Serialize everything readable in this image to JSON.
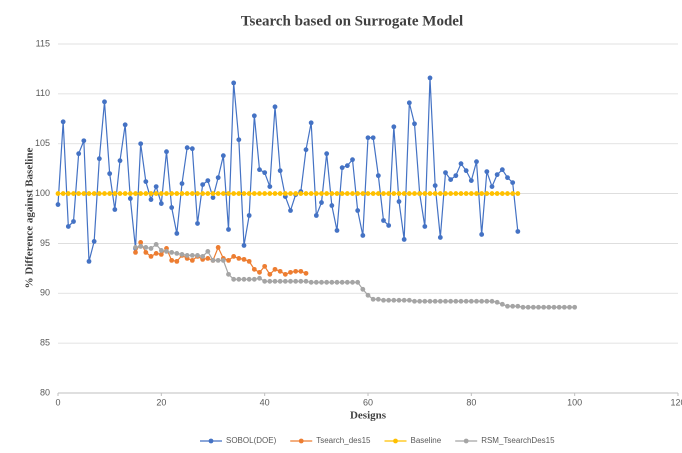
{
  "chart_data": {
    "type": "line",
    "title": "Tsearch based on Surrogate Model",
    "xlabel": "Designs",
    "ylabel": "% Difference against Baseline",
    "xlim": [
      0,
      120
    ],
    "xticks": [
      0,
      20,
      40,
      60,
      80,
      100,
      120
    ],
    "ylim": [
      80,
      115
    ],
    "yticks": [
      80,
      85,
      90,
      95,
      100,
      105,
      110,
      115
    ],
    "grid": true,
    "legend": "bottom",
    "series": [
      {
        "name": "SOBOL(DOE)",
        "color": "#4472c4",
        "x": [
          0,
          1,
          2,
          3,
          4,
          5,
          6,
          7,
          8,
          9,
          10,
          11,
          12,
          13,
          14,
          15,
          16,
          17,
          18,
          19,
          20,
          21,
          22,
          23,
          24,
          25,
          26,
          27,
          28,
          29,
          30,
          31,
          32,
          33,
          34,
          35,
          36,
          37,
          38,
          39,
          40,
          41,
          42,
          43,
          44,
          45,
          46,
          47,
          48,
          49,
          50,
          51,
          52,
          53,
          54,
          55,
          56,
          57,
          58,
          59,
          60,
          61,
          62,
          63,
          64,
          65,
          66,
          67,
          68,
          69,
          70,
          71,
          72,
          73,
          74,
          75,
          76,
          77,
          78,
          79,
          80,
          81,
          82,
          83,
          84,
          85,
          86,
          87,
          88,
          89
        ],
        "values": [
          98.9,
          107.2,
          96.7,
          97.2,
          104,
          105.3,
          93.2,
          95.2,
          103.5,
          109.2,
          102,
          98.4,
          103.3,
          106.9,
          99.5,
          94.5,
          105,
          101.2,
          99.4,
          100.7,
          99,
          104.2,
          98.6,
          96,
          101,
          104.6,
          104.5,
          97,
          100.9,
          101.3,
          99.6,
          101.6,
          103.8,
          96.4,
          111.1,
          105.4,
          94.8,
          97.8,
          107.8,
          102.4,
          102.1,
          100.7,
          108.7,
          102.3,
          99.7,
          98.3,
          99.9,
          100.2,
          104.4,
          107.1,
          97.8,
          99.1,
          104,
          98.8,
          96.3,
          102.6,
          102.8,
          103.4,
          98.3,
          95.8,
          105.6,
          105.6,
          101.8,
          97.3,
          96.8,
          106.7,
          99.2,
          95.4,
          109.1,
          107,
          100,
          96.7,
          111.6,
          100.8,
          95.6,
          102.1,
          101.4,
          101.8,
          103,
          102.3,
          101.3,
          103.2,
          95.9,
          102.2,
          100.7,
          101.9,
          102.4,
          101.6,
          101.1,
          96.2
        ]
      },
      {
        "name": "Tsearch_des15",
        "color": "#ed7d31",
        "x": [
          15,
          16,
          17,
          18,
          19,
          20,
          21,
          22,
          23,
          24,
          25,
          26,
          27,
          28,
          29,
          30,
          31,
          32,
          33,
          34,
          35,
          36,
          37,
          38,
          39,
          40,
          41,
          42,
          43,
          44,
          45,
          46,
          47,
          48
        ],
        "values": [
          94.1,
          95.1,
          94.1,
          93.7,
          94,
          93.9,
          94.5,
          93.3,
          93.2,
          93.8,
          93.5,
          93.3,
          93.7,
          93.4,
          93.5,
          93.3,
          94.6,
          93.5,
          93.3,
          93.7,
          93.5,
          93.4,
          93.2,
          92.4,
          92.1,
          92.7,
          91.9,
          92.4,
          92.2,
          91.9,
          92.1,
          92.2,
          92.2,
          92
        ]
      },
      {
        "name": "Baseline",
        "color": "#ffc000",
        "x": [
          0,
          1,
          2,
          3,
          4,
          5,
          6,
          7,
          8,
          9,
          10,
          11,
          12,
          13,
          14,
          15,
          16,
          17,
          18,
          19,
          20,
          21,
          22,
          23,
          24,
          25,
          26,
          27,
          28,
          29,
          30,
          31,
          32,
          33,
          34,
          35,
          36,
          37,
          38,
          39,
          40,
          41,
          42,
          43,
          44,
          45,
          46,
          47,
          48,
          49,
          50,
          51,
          52,
          53,
          54,
          55,
          56,
          57,
          58,
          59,
          60,
          61,
          62,
          63,
          64,
          65,
          66,
          67,
          68,
          69,
          70,
          71,
          72,
          73,
          74,
          75,
          76,
          77,
          78,
          79,
          80,
          81,
          82,
          83,
          84,
          85,
          86,
          87,
          88,
          89
        ],
        "values": [
          100,
          100,
          100,
          100,
          100,
          100,
          100,
          100,
          100,
          100,
          100,
          100,
          100,
          100,
          100,
          100,
          100,
          100,
          100,
          100,
          100,
          100,
          100,
          100,
          100,
          100,
          100,
          100,
          100,
          100,
          100,
          100,
          100,
          100,
          100,
          100,
          100,
          100,
          100,
          100,
          100,
          100,
          100,
          100,
          100,
          100,
          100,
          100,
          100,
          100,
          100,
          100,
          100,
          100,
          100,
          100,
          100,
          100,
          100,
          100,
          100,
          100,
          100,
          100,
          100,
          100,
          100,
          100,
          100,
          100,
          100,
          100,
          100,
          100,
          100,
          100,
          100,
          100,
          100,
          100,
          100,
          100,
          100,
          100,
          100,
          100,
          100,
          100,
          100,
          100
        ]
      },
      {
        "name": "RSM_TsearchDes15",
        "color": "#a5a5a5",
        "x": [
          15,
          16,
          17,
          18,
          19,
          20,
          21,
          22,
          23,
          24,
          25,
          26,
          27,
          28,
          29,
          30,
          31,
          32,
          33,
          34,
          35,
          36,
          37,
          38,
          39,
          40,
          41,
          42,
          43,
          44,
          45,
          46,
          47,
          48,
          49,
          50,
          51,
          52,
          53,
          54,
          55,
          56,
          57,
          58,
          59,
          60,
          61,
          62,
          63,
          64,
          65,
          66,
          67,
          68,
          69,
          70,
          71,
          72,
          73,
          74,
          75,
          76,
          77,
          78,
          79,
          80,
          81,
          82,
          83,
          84,
          85,
          86,
          87,
          88,
          89,
          90,
          91,
          92,
          93,
          94,
          95,
          96,
          97,
          98,
          99,
          100
        ],
        "values": [
          94.6,
          94.7,
          94.6,
          94.5,
          94.9,
          94.3,
          94.2,
          94.1,
          94.0,
          93.9,
          93.8,
          93.8,
          93.8,
          93.7,
          94.2,
          93.3,
          93.3,
          93.3,
          91.9,
          91.4,
          91.4,
          91.4,
          91.4,
          91.4,
          91.5,
          91.2,
          91.2,
          91.2,
          91.2,
          91.2,
          91.2,
          91.2,
          91.2,
          91.2,
          91.1,
          91.1,
          91.1,
          91.1,
          91.1,
          91.1,
          91.1,
          91.1,
          91.1,
          91.1,
          90.4,
          89.8,
          89.4,
          89.4,
          89.3,
          89.3,
          89.3,
          89.3,
          89.3,
          89.3,
          89.2,
          89.2,
          89.2,
          89.2,
          89.2,
          89.2,
          89.2,
          89.2,
          89.2,
          89.2,
          89.2,
          89.2,
          89.2,
          89.2,
          89.2,
          89.2,
          89.1,
          88.9,
          88.7,
          88.7,
          88.7,
          88.6,
          88.6,
          88.6,
          88.6,
          88.6,
          88.6,
          88.6,
          88.6,
          88.6,
          88.6,
          88.6
        ]
      }
    ]
  }
}
